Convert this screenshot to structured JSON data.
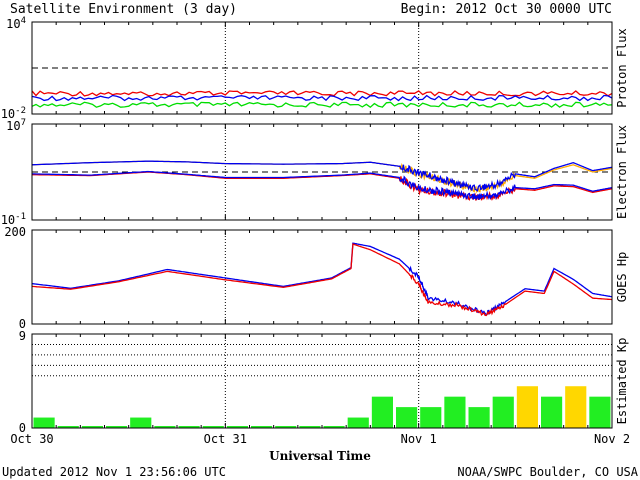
{
  "header": {
    "title": "Satellite Environment (3 day)",
    "begin": "Begin:  2012 Oct 30 0000 UTC"
  },
  "footer": {
    "updated": "Updated 2012 Nov  1 23:56:06 UTC",
    "credit": "NOAA/SWPC Boulder, CO USA"
  },
  "colors": {
    "red": "#ee0000",
    "blue": "#0000ee",
    "green": "#00dd00",
    "orange": "#ffaa00",
    "kp_green": "#22ee22",
    "kp_yellow": "#ffd700"
  },
  "chart_data": [
    {
      "type": "line",
      "panel": "proton",
      "ylabel": "Proton Flux",
      "yscale": "log",
      "ylim": [
        0.01,
        10000
      ],
      "yticks": [
        {
          "base": "10",
          "exp": "4"
        },
        {
          "base": "10",
          "exp": "-2"
        }
      ],
      "threshold": 10,
      "x_range_days": [
        0,
        3
      ],
      "series": [
        {
          "color": "red",
          "x": [
            0,
            0.5,
            1,
            1.5,
            2,
            2.5,
            3
          ],
          "y": [
            0.22,
            0.22,
            0.22,
            0.22,
            0.22,
            0.22,
            0.22
          ]
        },
        {
          "color": "blue",
          "x": [
            0,
            0.5,
            1,
            1.5,
            2,
            2.5,
            3
          ],
          "y": [
            0.11,
            0.11,
            0.11,
            0.11,
            0.11,
            0.11,
            0.11
          ]
        },
        {
          "color": "green",
          "x": [
            0,
            0.5,
            1,
            1.5,
            2,
            2.5,
            3
          ],
          "y": [
            0.04,
            0.04,
            0.04,
            0.04,
            0.04,
            0.04,
            0.04
          ]
        }
      ]
    },
    {
      "type": "line",
      "panel": "electron",
      "ylabel": "Electron Flux",
      "yscale": "log",
      "ylim": [
        0.1,
        10000000
      ],
      "yticks": [
        {
          "base": "10",
          "exp": "7"
        },
        {
          "base": "10",
          "exp": "-1"
        }
      ],
      "threshold": 1000,
      "x_range_days": [
        0,
        3
      ],
      "series": [
        {
          "color": "orange",
          "x": [
            0,
            0.3,
            0.6,
            0.8,
            1.0,
            1.3,
            1.6,
            1.75,
            1.9,
            2.0,
            2.1,
            2.2,
            2.3,
            2.4,
            2.5,
            2.6,
            2.7,
            2.8,
            2.9,
            3.0
          ],
          "y": [
            4000,
            6000,
            8000,
            7000,
            5000,
            4500,
            5000,
            6500,
            3000,
            700,
            250,
            80,
            40,
            60,
            500,
            300,
            1500,
            4000,
            1000,
            2000
          ]
        },
        {
          "color": "blue",
          "x": [
            0,
            0.3,
            0.6,
            0.8,
            1.0,
            1.3,
            1.6,
            1.75,
            1.9,
            2.0,
            2.1,
            2.2,
            2.3,
            2.4,
            2.5,
            2.6,
            2.7,
            2.8,
            2.9,
            3.0
          ],
          "y": [
            4000,
            6000,
            8000,
            7000,
            5000,
            4500,
            5000,
            6500,
            3000,
            900,
            300,
            100,
            50,
            80,
            700,
            400,
            2000,
            6000,
            1300,
            2500
          ]
        },
        {
          "color": "red",
          "x": [
            0,
            0.3,
            0.6,
            0.8,
            1.0,
            1.3,
            1.6,
            1.75,
            1.9,
            2.0,
            2.1,
            2.2,
            2.3,
            2.4,
            2.5,
            2.6,
            2.7,
            2.8,
            2.9,
            3.0
          ],
          "y": [
            600,
            500,
            1000,
            600,
            300,
            300,
            500,
            700,
            300,
            30,
            20,
            12,
            8,
            10,
            40,
            30,
            70,
            60,
            20,
            40
          ]
        },
        {
          "color": "blue",
          "x": [
            0,
            0.3,
            0.6,
            0.8,
            1.0,
            1.3,
            1.6,
            1.75,
            1.9,
            2.0,
            2.1,
            2.2,
            2.3,
            2.4,
            2.5,
            2.6,
            2.7,
            2.8,
            2.9,
            3.0
          ],
          "y": [
            700,
            550,
            1100,
            650,
            350,
            350,
            550,
            800,
            350,
            40,
            25,
            15,
            9,
            12,
            50,
            40,
            90,
            80,
            25,
            50
          ]
        }
      ]
    },
    {
      "type": "line",
      "panel": "goes_hp",
      "ylabel": "GOES Hp",
      "yscale": "linear",
      "ylim": [
        0,
        200
      ],
      "yticks": [
        200,
        0
      ],
      "x_range_days": [
        0,
        3
      ],
      "series": [
        {
          "color": "blue",
          "x": [
            0,
            0.2,
            0.45,
            0.7,
            1.0,
            1.3,
            1.55,
            1.65,
            1.66,
            1.75,
            1.9,
            2.0,
            2.05,
            2.2,
            2.35,
            2.45,
            2.55,
            2.65,
            2.7,
            2.8,
            2.9,
            3.0
          ],
          "y": [
            86,
            76,
            92,
            116,
            98,
            80,
            98,
            120,
            172,
            165,
            138,
            100,
            55,
            44,
            22,
            48,
            75,
            70,
            118,
            95,
            65,
            58
          ]
        },
        {
          "color": "red",
          "x": [
            0,
            0.2,
            0.45,
            0.7,
            1.0,
            1.3,
            1.55,
            1.65,
            1.66,
            1.75,
            1.9,
            2.0,
            2.05,
            2.2,
            2.35,
            2.45,
            2.55,
            2.65,
            2.7,
            2.8,
            2.9,
            3.0
          ],
          "y": [
            80,
            74,
            90,
            112,
            94,
            78,
            96,
            118,
            170,
            158,
            128,
            85,
            45,
            40,
            20,
            42,
            70,
            65,
            112,
            85,
            55,
            52
          ]
        }
      ]
    },
    {
      "type": "bar",
      "panel": "kp",
      "ylabel": "Estimated Kp",
      "ylim": [
        0,
        9
      ],
      "yticks": [
        9,
        0
      ],
      "x_range_days": [
        0,
        3
      ],
      "bar_width_days": 0.125,
      "bars": [
        {
          "x": 0.0,
          "value": 1,
          "color": "kp_green"
        },
        {
          "x": 0.125,
          "value": 0,
          "color": "kp_green"
        },
        {
          "x": 0.25,
          "value": 0,
          "color": "kp_green"
        },
        {
          "x": 0.375,
          "value": 0,
          "color": "kp_green"
        },
        {
          "x": 0.5,
          "value": 1,
          "color": "kp_green"
        },
        {
          "x": 0.625,
          "value": 0,
          "color": "kp_green"
        },
        {
          "x": 0.75,
          "value": 0,
          "color": "kp_green"
        },
        {
          "x": 0.875,
          "value": 0,
          "color": "kp_green"
        },
        {
          "x": 1.0,
          "value": 0,
          "color": "kp_green"
        },
        {
          "x": 1.125,
          "value": 0,
          "color": "kp_green"
        },
        {
          "x": 1.25,
          "value": 0,
          "color": "kp_green"
        },
        {
          "x": 1.375,
          "value": 0,
          "color": "kp_green"
        },
        {
          "x": 1.5,
          "value": 0,
          "color": "kp_green"
        },
        {
          "x": 1.625,
          "value": 1,
          "color": "kp_green"
        },
        {
          "x": 1.75,
          "value": 3,
          "color": "kp_green"
        },
        {
          "x": 1.875,
          "value": 2,
          "color": "kp_green"
        },
        {
          "x": 2.0,
          "value": 2,
          "color": "kp_green"
        },
        {
          "x": 2.125,
          "value": 3,
          "color": "kp_green"
        },
        {
          "x": 2.25,
          "value": 2,
          "color": "kp_green"
        },
        {
          "x": 2.375,
          "value": 3,
          "color": "kp_green"
        },
        {
          "x": 2.5,
          "value": 4,
          "color": "kp_yellow"
        },
        {
          "x": 2.625,
          "value": 3,
          "color": "kp_green"
        },
        {
          "x": 2.75,
          "value": 4,
          "color": "kp_yellow"
        },
        {
          "x": 2.875,
          "value": 3,
          "color": "kp_green"
        }
      ]
    }
  ],
  "x_axis": {
    "title": "Universal Time",
    "ticks": [
      {
        "day": 0,
        "label": "Oct 30"
      },
      {
        "day": 1,
        "label": "Oct 31"
      },
      {
        "day": 2,
        "label": "Nov 1"
      },
      {
        "day": 3,
        "label": "Nov 2"
      }
    ]
  }
}
